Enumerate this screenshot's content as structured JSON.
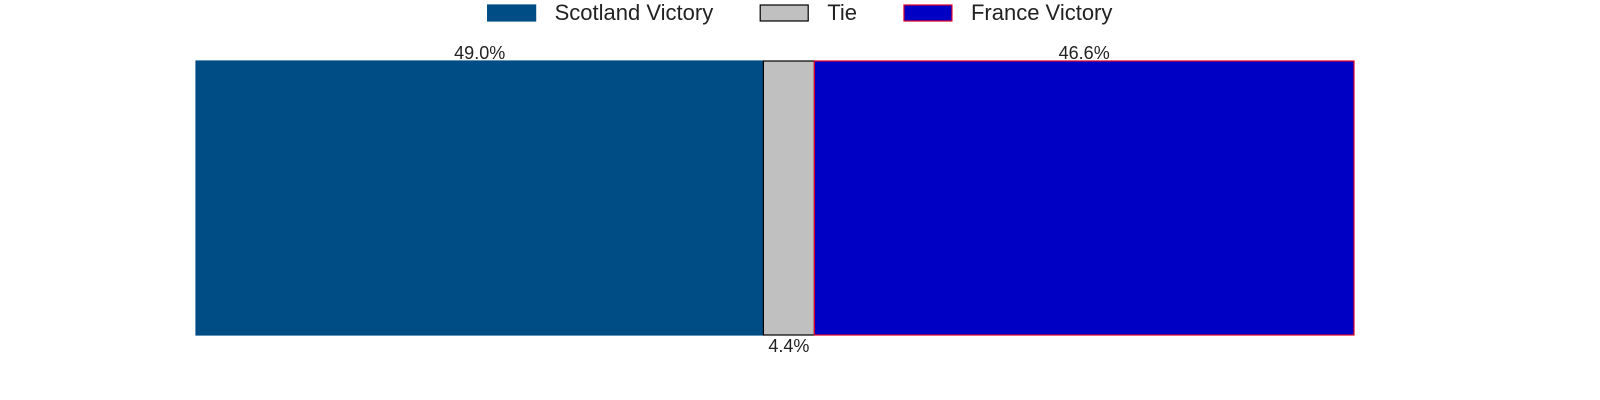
{
  "chart_data": {
    "type": "stacked-bar-horizontal",
    "series": [
      {
        "name": "Scotland Victory",
        "color": "#004c84",
        "edgecolor": "#004c84",
        "values": [
          49.0
        ],
        "value_labels": [
          "49.0%"
        ]
      },
      {
        "name": "Tie",
        "color": "#c0c0c0",
        "edgecolor": "#000000",
        "values": [
          4.4
        ],
        "value_labels": [
          "4.4%"
        ]
      },
      {
        "name": "France Victory",
        "color": "#0000c4",
        "edgecolor": "#e0002a",
        "values": [
          46.6
        ],
        "value_labels": [
          "46.6%"
        ]
      }
    ],
    "xlim": [
      0,
      100
    ],
    "legend": "upper center"
  }
}
